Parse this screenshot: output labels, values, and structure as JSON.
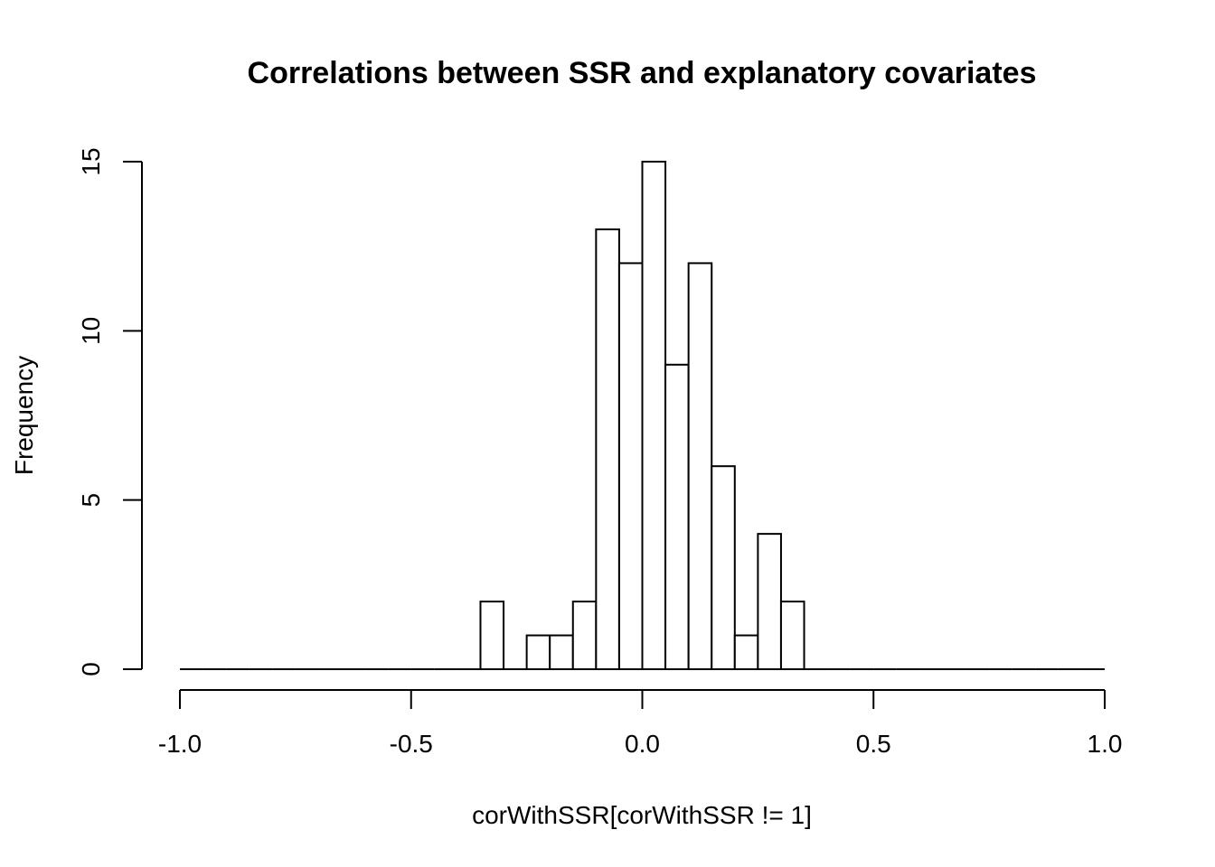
{
  "chart_data": {
    "type": "bar",
    "title": "Correlations between SSR and explanatory covariates",
    "xlabel": "corWithSSR[corWithSSR != 1]",
    "ylabel": "Frequency",
    "xlim": [
      -1.0,
      1.0
    ],
    "ylim": [
      0,
      15
    ],
    "x_ticks": [
      "-1.0",
      "-0.5",
      "0.0",
      "0.5",
      "1.0"
    ],
    "y_ticks": [
      "0",
      "5",
      "10",
      "15"
    ],
    "bin_width": 0.05,
    "bins_start": -1.0,
    "values": [
      0,
      0,
      0,
      0,
      0,
      0,
      0,
      0,
      0,
      0,
      0,
      0,
      0,
      2,
      0,
      1,
      1,
      2,
      13,
      12,
      15,
      9,
      12,
      6,
      1,
      4,
      2,
      0,
      0,
      0,
      0,
      0,
      0,
      0,
      0,
      0,
      0,
      0,
      0,
      0
    ],
    "grid": false,
    "legend": "none",
    "bar_fill": "#ffffff",
    "bar_stroke": "#000000"
  }
}
